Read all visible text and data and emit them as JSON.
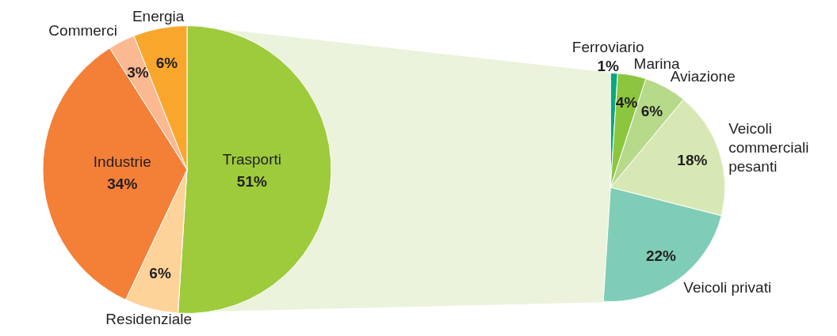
{
  "chart_data": [
    {
      "type": "pie",
      "categories": [
        "Trasporti",
        "Residenziale",
        "Industrie",
        "Commerci",
        "Energia"
      ],
      "values": [
        51,
        6,
        34,
        3,
        6
      ],
      "colors": [
        "#9dcb3b",
        "#fdd399",
        "#f47f37",
        "#fbb991",
        "#f9a72c"
      ],
      "value_labels": [
        "51%",
        "6%",
        "34%",
        "3%",
        "6%"
      ]
    },
    {
      "type": "pie",
      "categories": [
        "Ferroviario",
        "Marina",
        "Aviazione",
        "Veicoli commerciali pesanti",
        "Veicoli privati"
      ],
      "values": [
        1,
        4,
        6,
        18,
        22
      ],
      "colors": [
        "#0aa77f",
        "#8cc63f",
        "#b6d98a",
        "#d8e8b5",
        "#7fcdb6"
      ],
      "value_labels": [
        "1%",
        "4%",
        "6%",
        "18%",
        "22%"
      ]
    }
  ]
}
